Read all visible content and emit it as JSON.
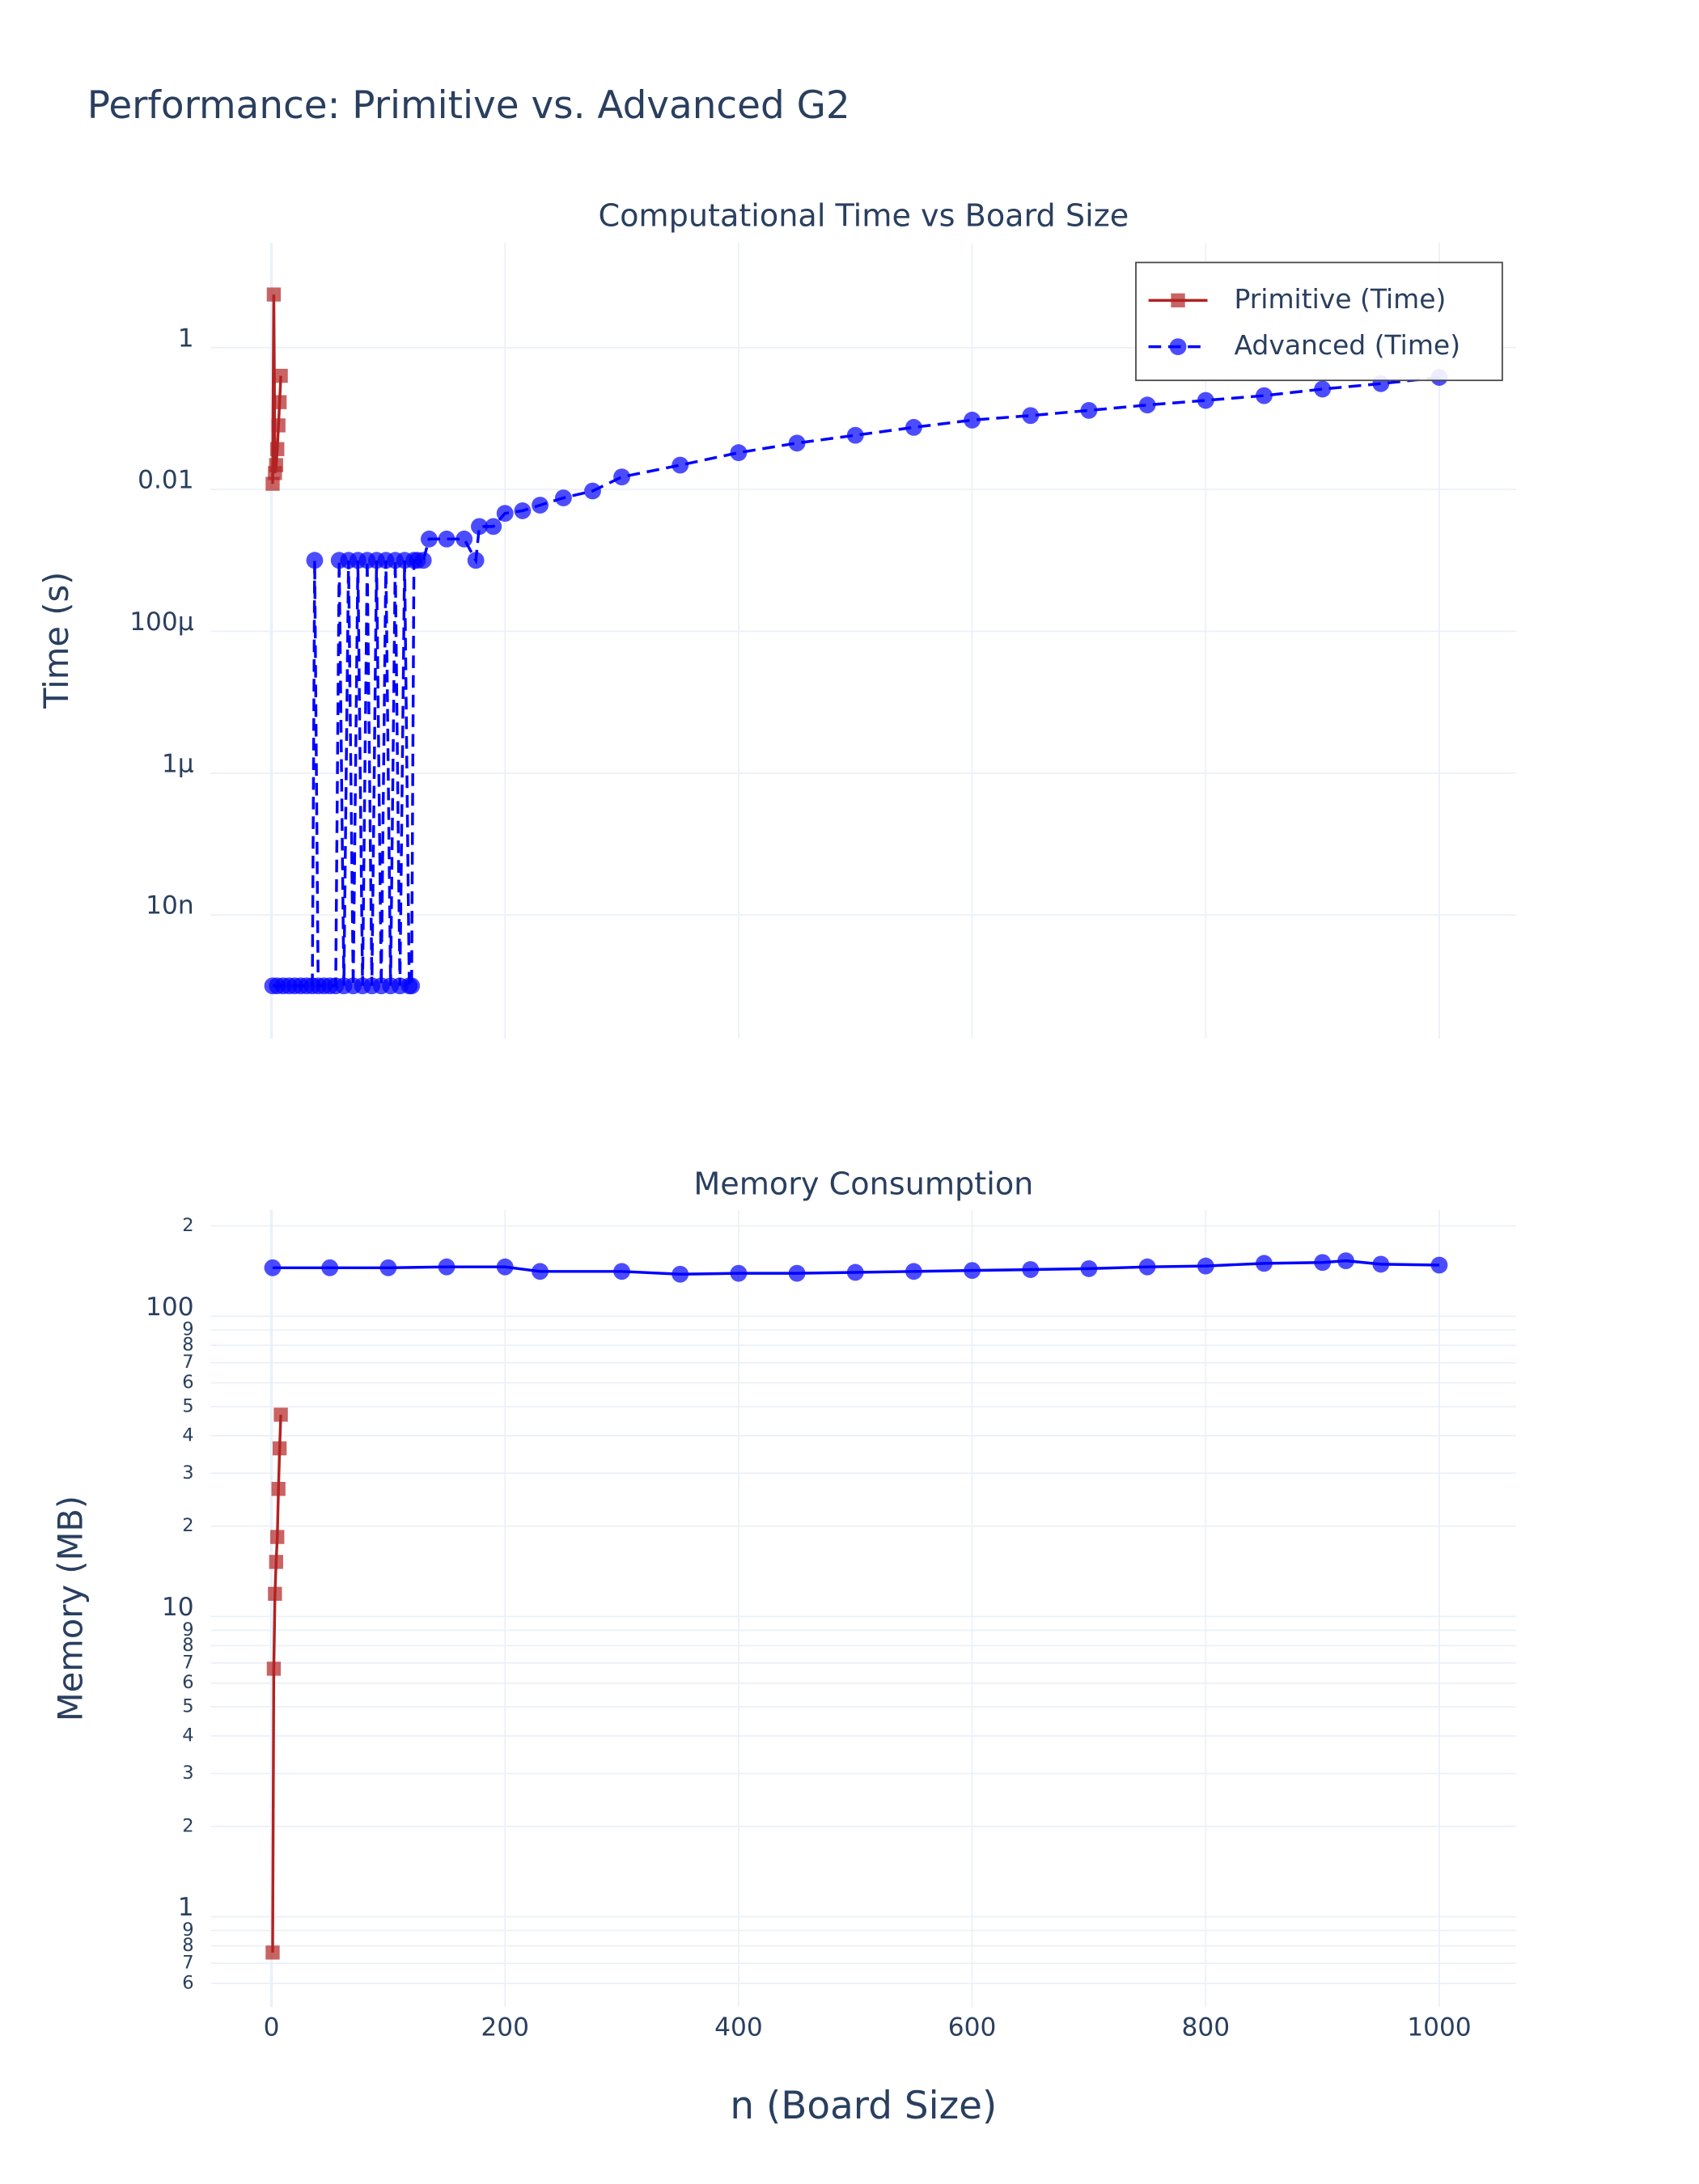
{
  "title": "Performance: Primitive vs. Advanced G2",
  "chart_data": [
    {
      "type": "line",
      "title": "Computational Time vs Board Size",
      "ylabel": "Time (s)",
      "ylog": true,
      "grid": true,
      "legend": "top-right",
      "xlim": [
        -52,
        1066
      ],
      "xticks": [
        0,
        200,
        400,
        600,
        800,
        1000
      ],
      "ylim": [
        1.8e-10,
        30
      ],
      "yticks": [
        {
          "value": 1e-08,
          "label": "10n"
        },
        {
          "value": 1e-06,
          "label": "1μ"
        },
        {
          "value": 0.0001,
          "label": "100μ"
        },
        0.01,
        1
      ],
      "series": [
        {
          "name": "Primitive (Time)",
          "color": "#b22222",
          "marker": "square",
          "dash": false,
          "x": [
            1,
            2,
            3,
            4,
            5,
            6,
            7,
            8
          ],
          "values": [
            0.012,
            5.6,
            0.017,
            0.022,
            0.037,
            0.08,
            0.17,
            0.4
          ]
        },
        {
          "name": "Advanced (Time)",
          "color": "#0000ff",
          "marker": "circle",
          "dash": true,
          "x": [
            1,
            5,
            10,
            15,
            20,
            25,
            30,
            35,
            37,
            40,
            45,
            50,
            55,
            58,
            62,
            66,
            70,
            74,
            78,
            82,
            86,
            90,
            94,
            98,
            102,
            106,
            110,
            114,
            118,
            120,
            122,
            125,
            130,
            135,
            150,
            165,
            175,
            178,
            190,
            200,
            215,
            230,
            250,
            275,
            300,
            350,
            400,
            450,
            500,
            550,
            600,
            650,
            700,
            750,
            800,
            850,
            900,
            950,
            1000
          ],
          "values": [
            1e-09,
            1e-09,
            1e-09,
            1e-09,
            1e-09,
            1e-09,
            1e-09,
            1e-09,
            0.001,
            1e-09,
            1e-09,
            1e-09,
            1e-09,
            0.001,
            1e-09,
            0.001,
            1e-09,
            0.001,
            1e-09,
            0.001,
            1e-09,
            0.001,
            1e-09,
            0.001,
            1e-09,
            0.001,
            1e-09,
            0.001,
            1e-09,
            1e-09,
            0.001,
            0.001,
            0.001,
            0.002,
            0.002,
            0.002,
            0.001,
            0.003,
            0.003,
            0.0046,
            0.005,
            0.006,
            0.0076,
            0.0095,
            0.015,
            0.022,
            0.033,
            0.045,
            0.058,
            0.075,
            0.095,
            0.11,
            0.13,
            0.155,
            0.18,
            0.21,
            0.26,
            0.31,
            0.38
          ]
        }
      ]
    },
    {
      "type": "line",
      "title": "Memory Consumption",
      "ylabel": "Memory (MB)",
      "xlabel": "n (Board Size)",
      "ylog": true,
      "grid": true,
      "xlim": [
        -52,
        1066
      ],
      "xticks": [
        0,
        200,
        400,
        600,
        800,
        1000
      ],
      "ylim": [
        0.5,
        226
      ],
      "yticks": [
        {
          "value": 0.6,
          "label": "6"
        },
        {
          "value": 0.7,
          "label": "7"
        },
        {
          "value": 0.8,
          "label": "8"
        },
        {
          "value": 0.9,
          "label": "9"
        },
        1,
        {
          "value": 2,
          "label": "2"
        },
        {
          "value": 3,
          "label": "3"
        },
        {
          "value": 4,
          "label": "4"
        },
        {
          "value": 5,
          "label": "5"
        },
        {
          "value": 6,
          "label": "6"
        },
        {
          "value": 7,
          "label": "7"
        },
        {
          "value": 8,
          "label": "8"
        },
        {
          "value": 9,
          "label": "9"
        },
        10,
        {
          "value": 20,
          "label": "2"
        },
        {
          "value": 30,
          "label": "3"
        },
        {
          "value": 40,
          "label": "4"
        },
        {
          "value": 50,
          "label": "5"
        },
        {
          "value": 60,
          "label": "6"
        },
        {
          "value": 70,
          "label": "7"
        },
        {
          "value": 80,
          "label": "8"
        },
        {
          "value": 90,
          "label": "9"
        },
        100,
        {
          "value": 200,
          "label": "2"
        }
      ],
      "series": [
        {
          "color": "#b22222",
          "marker": "square",
          "dash": false,
          "x": [
            1,
            2,
            3,
            4,
            5,
            6,
            7,
            8
          ],
          "values": [
            0.76,
            6.7,
            11.9,
            15.2,
            18.4,
            26.6,
            36.3,
            47
          ]
        },
        {
          "color": "#0000ff",
          "marker": "circle",
          "dash": false,
          "x": [
            1,
            50,
            100,
            150,
            200,
            230,
            300,
            350,
            400,
            450,
            500,
            550,
            600,
            650,
            700,
            750,
            800,
            850,
            900,
            920,
            950,
            1000
          ],
          "values": [
            145,
            145,
            145,
            146,
            146,
            141,
            141,
            138,
            139,
            139,
            140,
            141,
            142,
            143,
            144,
            146,
            147,
            150,
            151,
            153,
            149,
            148
          ]
        }
      ]
    }
  ]
}
